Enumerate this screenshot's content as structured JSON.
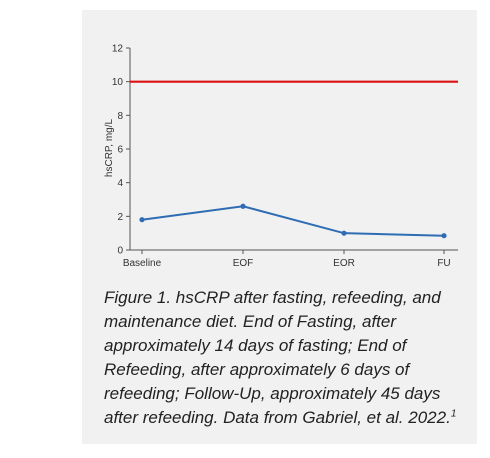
{
  "chart_data": {
    "type": "line",
    "categories": [
      "Baseline",
      "EOF",
      "EOR",
      "FU"
    ],
    "series": [
      {
        "values": [
          1.8,
          2.6,
          1.0,
          0.85
        ],
        "color": "#2e6db4"
      }
    ],
    "reference_line": {
      "value": 10,
      "color": "#dd1111"
    },
    "ylabel": "hsCRP, mg/L",
    "ylim": [
      0,
      12
    ],
    "yticks": [
      0,
      2,
      4,
      6,
      8,
      10,
      12
    ],
    "grid": false
  },
  "caption": {
    "text": "Figure 1. hsCRP after fasting, refeeding, and maintenance diet. End of Fasting, after approximately 14 days of fasting; End of Refeeding, after approximately 6 days of refeeding; Follow-Up, approximately 45 days after refeeding. Data from Gabriel, et al. 2022.",
    "superscript": "1"
  }
}
